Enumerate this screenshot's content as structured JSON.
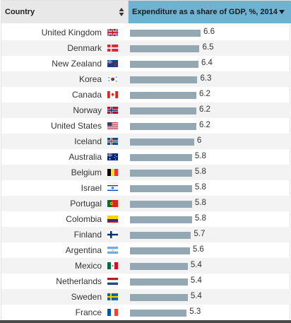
{
  "table": {
    "country_header": "Country",
    "value_header": "Expenditure as a share of GDP, %, 2014"
  },
  "chart_data": {
    "type": "bar",
    "orientation": "horizontal",
    "title": "",
    "ylabel": "Expenditure as a share of GDP, %, 2014",
    "xlim": [
      0,
      6.6
    ],
    "categories": [
      "United Kingdom",
      "Denmark",
      "New Zealand",
      "Korea",
      "Canada",
      "Norway",
      "United States",
      "Iceland",
      "Australia",
      "Belgium",
      "Israel",
      "Portugal",
      "Colombia",
      "Finland",
      "Argentina",
      "Mexico",
      "Netherlands",
      "Sweden",
      "France"
    ],
    "values": [
      6.6,
      6.5,
      6.4,
      6.3,
      6.2,
      6.2,
      6.2,
      6,
      5.8,
      5.8,
      5.8,
      5.8,
      5.8,
      5.7,
      5.6,
      5.4,
      5.4,
      5.4,
      5.3
    ],
    "value_labels": [
      "6.6",
      "6.5",
      "6.4",
      "6.3",
      "6.2",
      "6.2",
      "6.2",
      "6",
      "5.8",
      "5.8",
      "5.8",
      "5.8",
      "5.8",
      "5.7",
      "5.6",
      "5.4",
      "5.4",
      "5.4",
      "5.3"
    ],
    "flags": [
      "uk-flag-icon",
      "denmark-flag-icon",
      "new-zealand-flag-icon",
      "korea-flag-icon",
      "canada-flag-icon",
      "norway-flag-icon",
      "united-states-flag-icon",
      "iceland-flag-icon",
      "australia-flag-icon",
      "belgium-flag-icon",
      "israel-flag-icon",
      "portugal-flag-icon",
      "colombia-flag-icon",
      "finland-flag-icon",
      "argentina-flag-icon",
      "mexico-flag-icon",
      "netherlands-flag-icon",
      "sweden-flag-icon",
      "france-flag-icon"
    ]
  },
  "colors": {
    "header_highlight": "#6fb3d2",
    "header_bg": "#e8e8e8",
    "bar": "#93a8b3",
    "row_alt": "#f3f3f3"
  }
}
